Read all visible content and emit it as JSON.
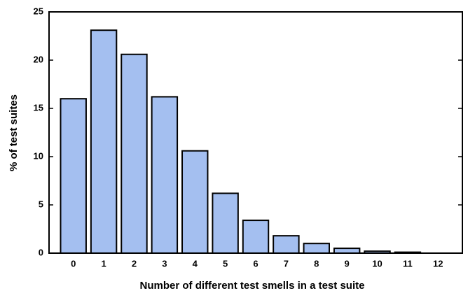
{
  "chart_data": {
    "type": "bar",
    "x_label": "Number of different test smells in a test suite",
    "y_label": "% of test suites",
    "categories": [
      "0",
      "1",
      "2",
      "3",
      "4",
      "5",
      "6",
      "7",
      "8",
      "9",
      "10",
      "11",
      "12"
    ],
    "values": [
      16,
      23.1,
      20.6,
      16.2,
      10.6,
      6.2,
      3.4,
      1.8,
      1.0,
      0.5,
      0.2,
      0.1,
      0
    ],
    "color": "#a4bff0",
    "ylim": [
      0,
      25
    ],
    "yticks": [
      0,
      5,
      10,
      15,
      20,
      25
    ]
  }
}
